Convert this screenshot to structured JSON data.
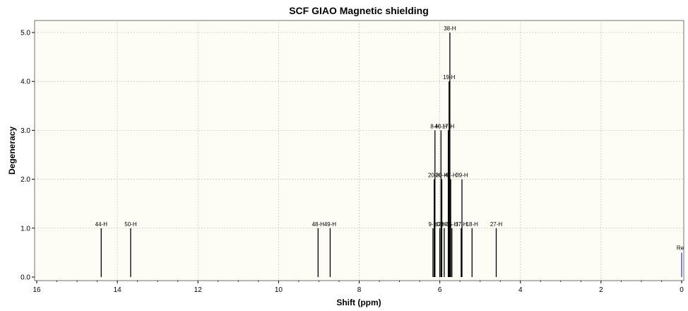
{
  "chart_data": {
    "type": "bar",
    "title": "SCF GIAO Magnetic shielding",
    "xlabel": "Shift (ppm)",
    "ylabel": "Degeneracy",
    "xlim": [
      16,
      0
    ],
    "ylim": [
      0,
      5.3
    ],
    "x_reversed": true,
    "grid": true,
    "x_ticks": [
      "16",
      "14",
      "12",
      "10",
      "8",
      "6",
      "4",
      "2",
      "0"
    ],
    "y_ticks": [
      "0.0",
      "1.0",
      "2.0",
      "3.0",
      "4.0",
      "5.0"
    ],
    "reference_label": "Re",
    "peaks": [
      {
        "label": "44-H",
        "x": 14.4,
        "y": 1
      },
      {
        "label": "50-H",
        "x": 13.67,
        "y": 1
      },
      {
        "label": "48-H",
        "x": 9.02,
        "y": 1
      },
      {
        "label": "49-H",
        "x": 8.72,
        "y": 1
      },
      {
        "label": "9-H",
        "x": 6.17,
        "y": 1
      },
      {
        "label": "20-H",
        "x": 6.14,
        "y": 2
      },
      {
        "label": "8-H",
        "x": 6.12,
        "y": 3
      },
      {
        "label": "10-H",
        "x": 6.0,
        "y": 1
      },
      {
        "label": "40-H",
        "x": 5.97,
        "y": 3
      },
      {
        "label": "30-H",
        "x": 5.95,
        "y": 2
      },
      {
        "label": "28-H",
        "x": 5.89,
        "y": 1
      },
      {
        "label": "17-H",
        "x": 5.79,
        "y": 3
      },
      {
        "label": "38-H",
        "x": 5.75,
        "y": 5
      },
      {
        "label": "19-H",
        "x": 5.77,
        "y": 4
      },
      {
        "label": "47-H",
        "x": 5.73,
        "y": 2
      },
      {
        "label": "35-H",
        "x": 5.7,
        "y": 1
      },
      {
        "label": "37-H",
        "x": 5.47,
        "y": 1
      },
      {
        "label": "39-H",
        "x": 5.45,
        "y": 2
      },
      {
        "label": "18-H",
        "x": 5.2,
        "y": 1
      },
      {
        "label": "27-H",
        "x": 4.6,
        "y": 1
      }
    ]
  }
}
